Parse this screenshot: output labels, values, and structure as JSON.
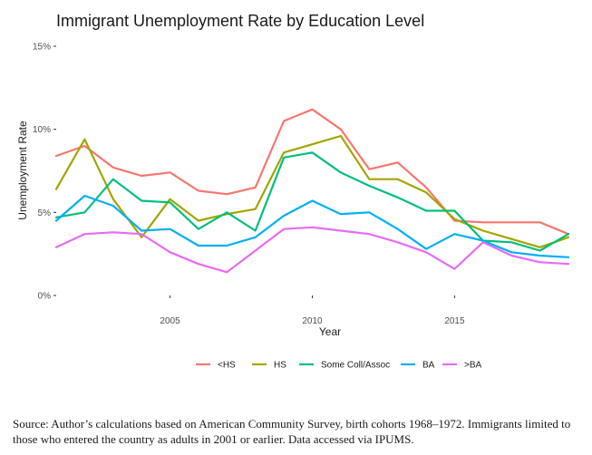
{
  "chart_data": {
    "type": "line",
    "title": "Immigrant Unemployment Rate by Education Level",
    "xlabel": "Year",
    "ylabel": "Unemployment Rate",
    "xlim": [
      2001,
      2019
    ],
    "ylim": [
      0,
      15
    ],
    "x_ticks": [
      2005,
      2010,
      2015
    ],
    "y_ticks": [
      0,
      5,
      10,
      15
    ],
    "y_tick_labels": [
      "0%",
      "5%",
      "10%",
      "15%"
    ],
    "grid": false,
    "legend_position": "bottom",
    "x": [
      2001,
      2002,
      2003,
      2004,
      2005,
      2006,
      2007,
      2008,
      2009,
      2010,
      2011,
      2012,
      2013,
      2014,
      2015,
      2016,
      2017,
      2018,
      2019
    ],
    "series": [
      {
        "name": "<HS",
        "color": "#F8766D",
        "values": [
          8.4,
          9.0,
          7.7,
          7.2,
          7.4,
          6.3,
          6.1,
          6.5,
          10.5,
          11.2,
          10.0,
          7.6,
          8.0,
          6.5,
          4.5,
          4.4,
          4.4,
          4.4,
          3.7
        ]
      },
      {
        "name": "HS",
        "color": "#A3A500",
        "values": [
          6.4,
          9.4,
          5.8,
          3.5,
          5.8,
          4.5,
          4.9,
          5.2,
          8.6,
          9.1,
          9.6,
          7.0,
          7.0,
          6.2,
          4.6,
          3.9,
          3.4,
          2.9,
          3.5
        ]
      },
      {
        "name": "Some Coll/Assoc",
        "color": "#00BF7D",
        "values": [
          4.7,
          5.0,
          7.0,
          5.7,
          5.6,
          4.0,
          5.0,
          3.9,
          8.3,
          8.6,
          7.4,
          6.6,
          5.9,
          5.1,
          5.1,
          3.3,
          3.2,
          2.7,
          3.7
        ]
      },
      {
        "name": "BA",
        "color": "#00B0F6",
        "values": [
          4.5,
          6.0,
          5.4,
          3.9,
          4.0,
          3.0,
          3.0,
          3.5,
          4.8,
          5.7,
          4.9,
          5.0,
          4.0,
          2.8,
          3.7,
          3.3,
          2.6,
          2.4,
          2.3
        ]
      },
      {
        "name": ">BA",
        "color": "#E76BF3",
        "values": [
          2.9,
          3.7,
          3.8,
          3.7,
          2.6,
          1.9,
          1.4,
          2.7,
          4.0,
          4.1,
          3.9,
          3.7,
          3.2,
          2.6,
          1.6,
          3.2,
          2.4,
          2.0,
          1.9
        ]
      }
    ]
  },
  "source_note": "Source: Author’s calculations based on American Community Survey, birth cohorts 1968–1972. Immigrants limited to those who entered the country as adults in 2001 or earlier. Data accessed via IPUMS."
}
